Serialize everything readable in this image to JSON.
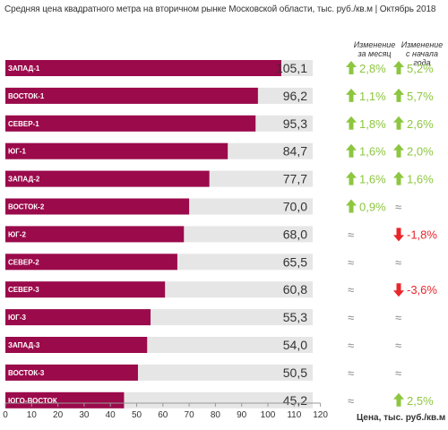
{
  "title": "Средняя цена квадратного метра на вторичном рынке Московской области, тыс. руб./кв.м | Октябрь 2018",
  "columns": {
    "month": "Изменение за месяц",
    "year": "Изменение с начала года"
  },
  "colors": {
    "bar": "#9b0a4b",
    "track": "#e6e6e6",
    "up": "#8dc63f",
    "down": "#e8262b",
    "neutral": "#888888"
  },
  "chart_data": {
    "type": "bar",
    "orientation": "horizontal",
    "categories": [
      "ЗАПАД-1",
      "ВОСТОК-1",
      "СЕВЕР-1",
      "ЮГ-1",
      "ЗАПАД-2",
      "ВОСТОК-2",
      "ЮГ-2",
      "СЕВЕР-2",
      "СЕВЕР-3",
      "ЮГ-3",
      "ЗАПАД-3",
      "ВОСТОК-3",
      "ЮГО-ВОСТОК"
    ],
    "values": [
      105.1,
      96.2,
      95.3,
      84.7,
      77.7,
      70.0,
      68.0,
      65.5,
      60.8,
      55.3,
      54.0,
      50.5,
      45.2
    ],
    "value_labels": [
      "105,1",
      "96,2",
      "95,3",
      "84,7",
      "77,7",
      "70,0",
      "68,0",
      "65,5",
      "60,8",
      "55,3",
      "54,0",
      "50,5",
      "45,2"
    ],
    "change_month": [
      {
        "dir": "up",
        "text": "2,8%"
      },
      {
        "dir": "up",
        "text": "1,1%"
      },
      {
        "dir": "up",
        "text": "1,8%"
      },
      {
        "dir": "up",
        "text": "1,6%"
      },
      {
        "dir": "up",
        "text": "1,6%"
      },
      {
        "dir": "up",
        "text": "0,9%"
      },
      {
        "dir": "flat",
        "text": "≈"
      },
      {
        "dir": "flat",
        "text": "≈"
      },
      {
        "dir": "flat",
        "text": "≈"
      },
      {
        "dir": "flat",
        "text": "≈"
      },
      {
        "dir": "flat",
        "text": "≈"
      },
      {
        "dir": "flat",
        "text": "≈"
      },
      {
        "dir": "flat",
        "text": "≈"
      }
    ],
    "change_year": [
      {
        "dir": "up",
        "text": "5,2%"
      },
      {
        "dir": "up",
        "text": "5,7%"
      },
      {
        "dir": "up",
        "text": "2,6%"
      },
      {
        "dir": "up",
        "text": "2,0%"
      },
      {
        "dir": "up",
        "text": "1,6%"
      },
      {
        "dir": "flat",
        "text": "≈"
      },
      {
        "dir": "down",
        "text": "-1,8%"
      },
      {
        "dir": "flat",
        "text": "≈"
      },
      {
        "dir": "down",
        "text": "-3,6%"
      },
      {
        "dir": "flat",
        "text": "≈"
      },
      {
        "dir": "flat",
        "text": "≈"
      },
      {
        "dir": "flat",
        "text": "≈"
      },
      {
        "dir": "up",
        "text": "2,5%"
      }
    ],
    "xlim": [
      0,
      120
    ],
    "xticks": [
      "0",
      "10",
      "20",
      "30",
      "40",
      "50",
      "60",
      "70",
      "80",
      "90",
      "100",
      "110",
      "120"
    ],
    "xlabel": "Цена, тыс. руб./кв.м",
    "grid": false
  }
}
